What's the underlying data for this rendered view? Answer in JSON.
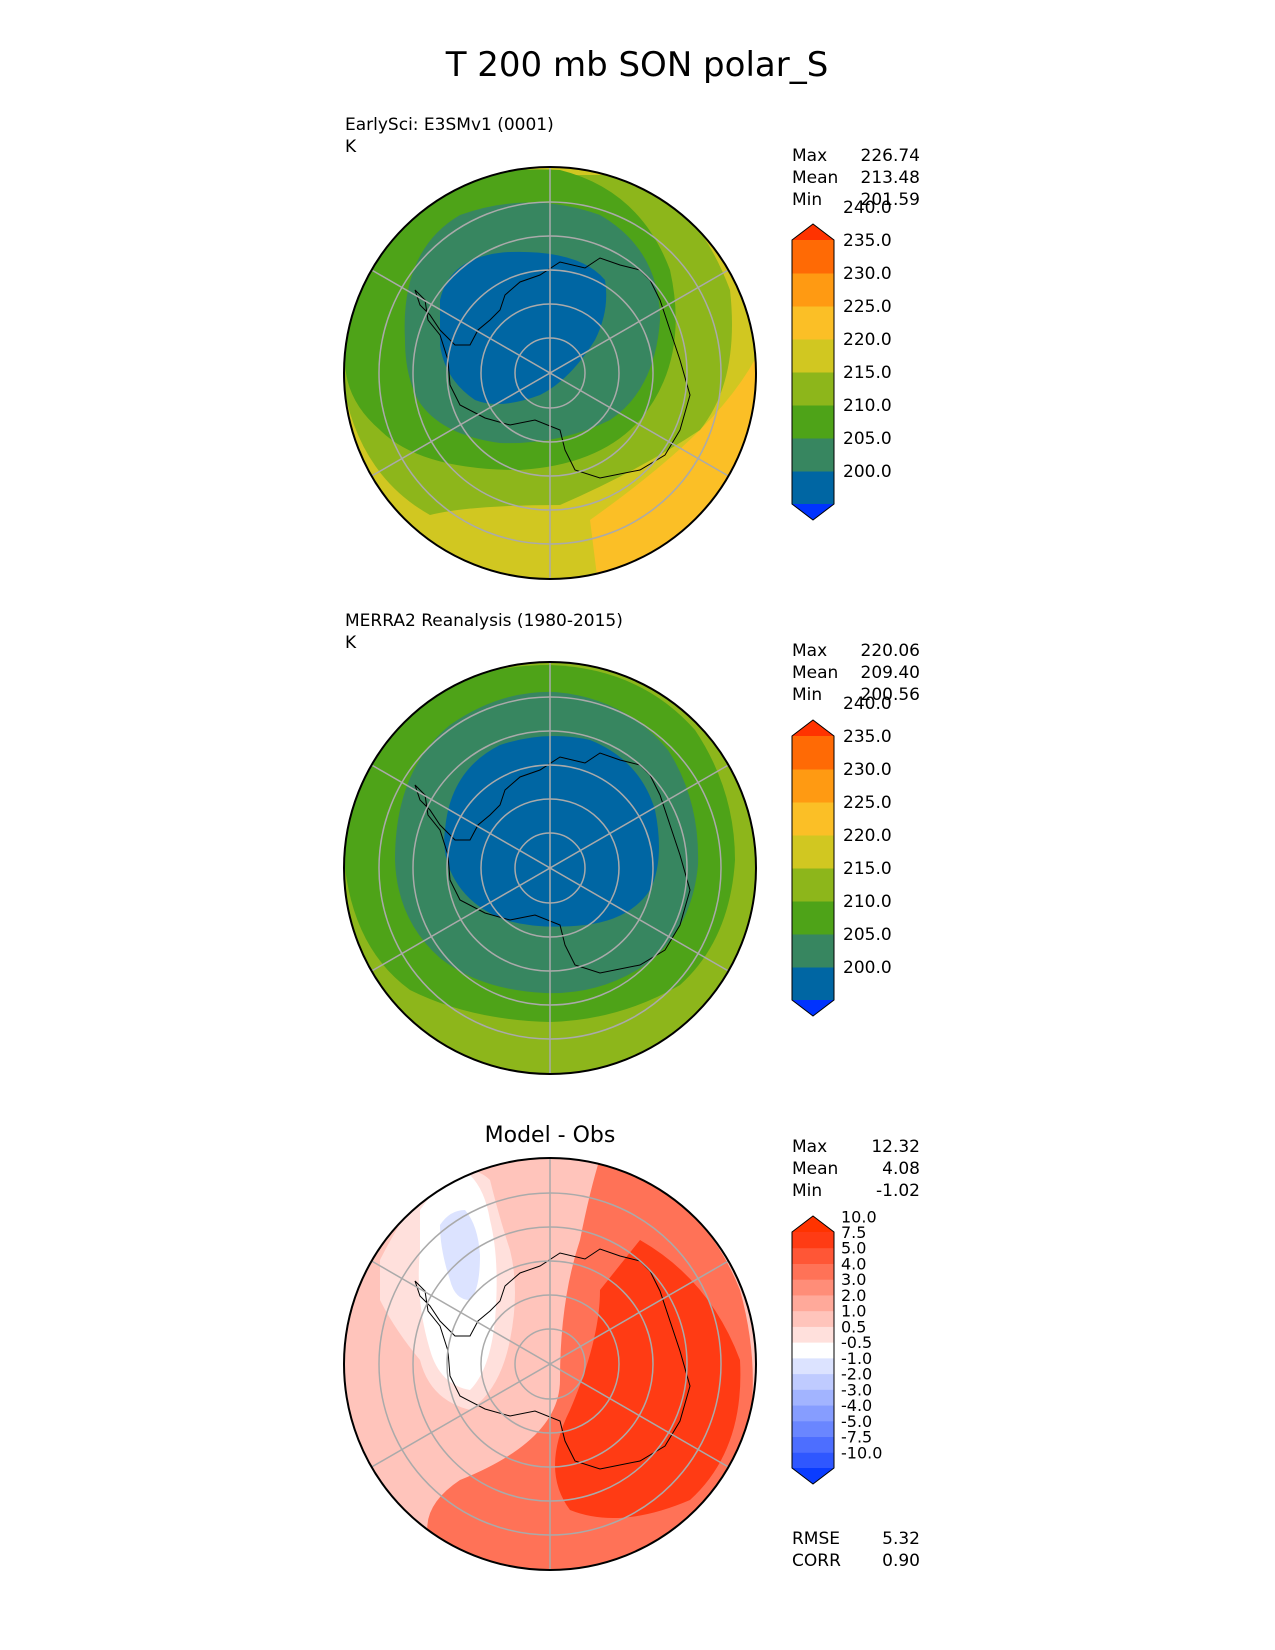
{
  "title": "T 200 mb SON polar_S",
  "chart_data": [
    {
      "type": "heatmap",
      "projection": "south-polar-stereographic",
      "subtitle": "EarlySci: E3SMv1 (0001)",
      "units": "K",
      "stats": [
        {
          "label": "Max",
          "value": "226.74"
        },
        {
          "label": "Mean",
          "value": "213.48"
        },
        {
          "label": "Min",
          "value": "201.59"
        }
      ],
      "colorbar": {
        "levels": [
          200,
          205,
          210,
          215,
          220,
          225,
          230,
          235,
          240
        ],
        "tick_labels": [
          "200.0",
          "205.0",
          "210.0",
          "215.0",
          "220.0",
          "225.0",
          "230.0",
          "235.0",
          "240.0"
        ],
        "colors": [
          "#0033ff",
          "#0066a3",
          "#378660",
          "#4ea318",
          "#8db61b",
          "#d1c721",
          "#fbbf26",
          "#ff9a12",
          "#ff6a05",
          "#ff3300"
        ],
        "extend": "both"
      },
      "field_bands": [
        {
          "value": 205,
          "color": "#0066a3"
        },
        {
          "value": 210,
          "color": "#378660"
        },
        {
          "value": 215,
          "color": "#4ea318"
        },
        {
          "value": 220,
          "color": "#8db61b"
        },
        {
          "value": 225,
          "color": "#d1c721"
        },
        {
          "value": 230,
          "color": "#fbbf26"
        }
      ]
    },
    {
      "type": "heatmap",
      "projection": "south-polar-stereographic",
      "subtitle": "MERRA2 Reanalysis (1980-2015)",
      "units": "K",
      "stats": [
        {
          "label": "Max",
          "value": "220.06"
        },
        {
          "label": "Mean",
          "value": "209.40"
        },
        {
          "label": "Min",
          "value": "200.56"
        }
      ],
      "colorbar": {
        "levels": [
          200,
          205,
          210,
          215,
          220,
          225,
          230,
          235,
          240
        ],
        "tick_labels": [
          "200.0",
          "205.0",
          "210.0",
          "215.0",
          "220.0",
          "225.0",
          "230.0",
          "235.0",
          "240.0"
        ],
        "colors": [
          "#0033ff",
          "#0066a3",
          "#378660",
          "#4ea318",
          "#8db61b",
          "#d1c721",
          "#fbbf26",
          "#ff9a12",
          "#ff6a05",
          "#ff3300"
        ],
        "extend": "both"
      },
      "field_bands": [
        {
          "value": 205,
          "color": "#0066a3"
        },
        {
          "value": 210,
          "color": "#378660"
        },
        {
          "value": 215,
          "color": "#4ea318"
        },
        {
          "value": 220,
          "color": "#8db61b"
        }
      ]
    },
    {
      "type": "heatmap",
      "projection": "south-polar-stereographic",
      "title": "Model - Obs",
      "stats": [
        {
          "label": "Max",
          "value": "12.32"
        },
        {
          "label": "Mean",
          "value": "4.08"
        },
        {
          "label": "Min",
          "value": "-1.02"
        }
      ],
      "colorbar": {
        "levels": [
          -10,
          -7.5,
          -5,
          -4,
          -3,
          -2,
          -1,
          -0.5,
          0.5,
          1,
          2,
          3,
          4,
          5,
          7.5,
          10
        ],
        "tick_labels": [
          "-10.0",
          "-7.5",
          "-5.0",
          "-4.0",
          "-3.0",
          "-2.0",
          "-1.0",
          "-0.5",
          "0.5",
          "1.0",
          "2.0",
          "3.0",
          "4.0",
          "5.0",
          "7.5",
          "10.0"
        ],
        "colors": [
          "#0a3cff",
          "#2f57ff",
          "#4d6eff",
          "#6a86ff",
          "#869dff",
          "#a2b4ff",
          "#bfcbff",
          "#dce3ff",
          "#ffffff",
          "#ffe0dc",
          "#ffc4bb",
          "#ffa99a",
          "#ff8d78",
          "#ff7257",
          "#ff5636",
          "#ff3b14",
          "#ff3300"
        ],
        "extend": "both"
      },
      "extra_stats": [
        {
          "label": "RMSE",
          "value": "5.32"
        },
        {
          "label": "CORR",
          "value": "0.90"
        }
      ]
    }
  ]
}
